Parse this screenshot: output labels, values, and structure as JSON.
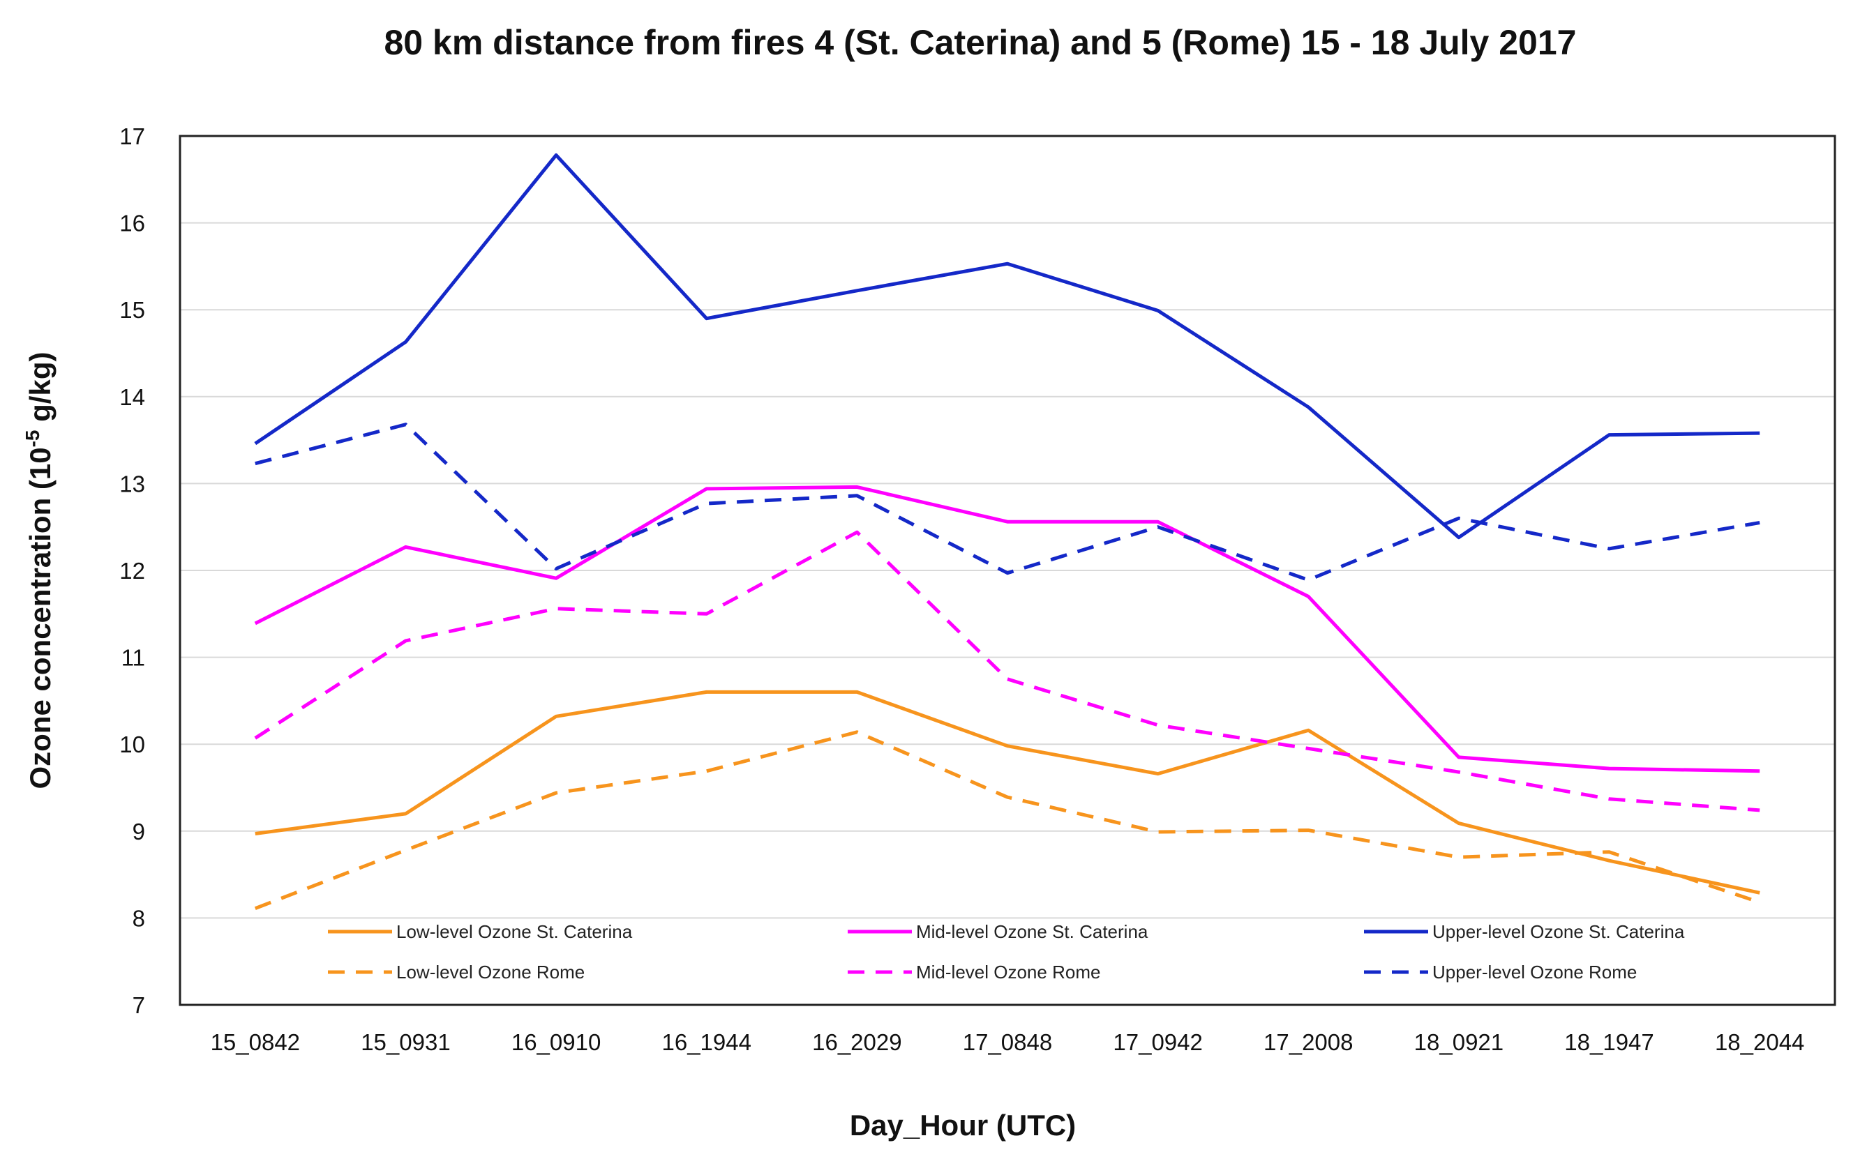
{
  "chart_data": {
    "type": "line",
    "title": "80 km distance from fires 4 (St. Caterina) and 5 (Rome) 15 - 18 July  2017",
    "xlabel": "Day_Hour (UTC)",
    "ylabel_main": "Ozone concentration (10",
    "ylabel_sup": "-5",
    "ylabel_end": " g/kg)",
    "ylim": [
      7,
      17
    ],
    "yticks": [
      7,
      8,
      9,
      10,
      11,
      12,
      13,
      14,
      15,
      16,
      17
    ],
    "grid": true,
    "legend_position": "bottom-inside",
    "categories": [
      "15_0842",
      "15_0931",
      "16_0910",
      "16_1944",
      "16_2029",
      "17_0848",
      "17_0942",
      "17_2008",
      "18_0921",
      "18_1947",
      "18_2044"
    ],
    "series": [
      {
        "name": "Low-level Ozone St. Caterina",
        "color": "#f7941d",
        "dashed": false,
        "values": [
          8.97,
          9.2,
          10.32,
          10.6,
          10.6,
          9.98,
          9.66,
          10.16,
          9.09,
          8.66,
          8.29
        ]
      },
      {
        "name": "Mid-level Ozone St. Caterina",
        "color": "#ff00ff",
        "dashed": false,
        "values": [
          11.39,
          12.27,
          11.91,
          12.94,
          12.96,
          12.56,
          12.56,
          11.7,
          9.85,
          9.72,
          9.69
        ]
      },
      {
        "name": "Upper-level Ozone St. Caterina",
        "color": "#1428c8",
        "dashed": false,
        "values": [
          13.46,
          14.63,
          16.78,
          14.9,
          15.22,
          15.53,
          14.99,
          13.88,
          12.38,
          13.56,
          13.58
        ]
      },
      {
        "name": "Low-level Ozone Rome",
        "color": "#f7941d",
        "dashed": true,
        "values": [
          8.11,
          8.78,
          9.44,
          9.69,
          10.14,
          9.39,
          8.99,
          9.01,
          8.7,
          8.76,
          8.18
        ]
      },
      {
        "name": "Mid-level Ozone Rome",
        "color": "#ff00ff",
        "dashed": true,
        "values": [
          10.07,
          11.19,
          11.56,
          11.5,
          12.44,
          10.75,
          10.22,
          9.95,
          9.68,
          9.37,
          9.24
        ]
      },
      {
        "name": "Upper-level Ozone Rome",
        "color": "#1428c8",
        "dashed": true,
        "values": [
          13.23,
          13.68,
          12.02,
          12.77,
          12.86,
          11.97,
          12.5,
          11.89,
          12.6,
          12.25,
          12.55
        ]
      }
    ]
  }
}
